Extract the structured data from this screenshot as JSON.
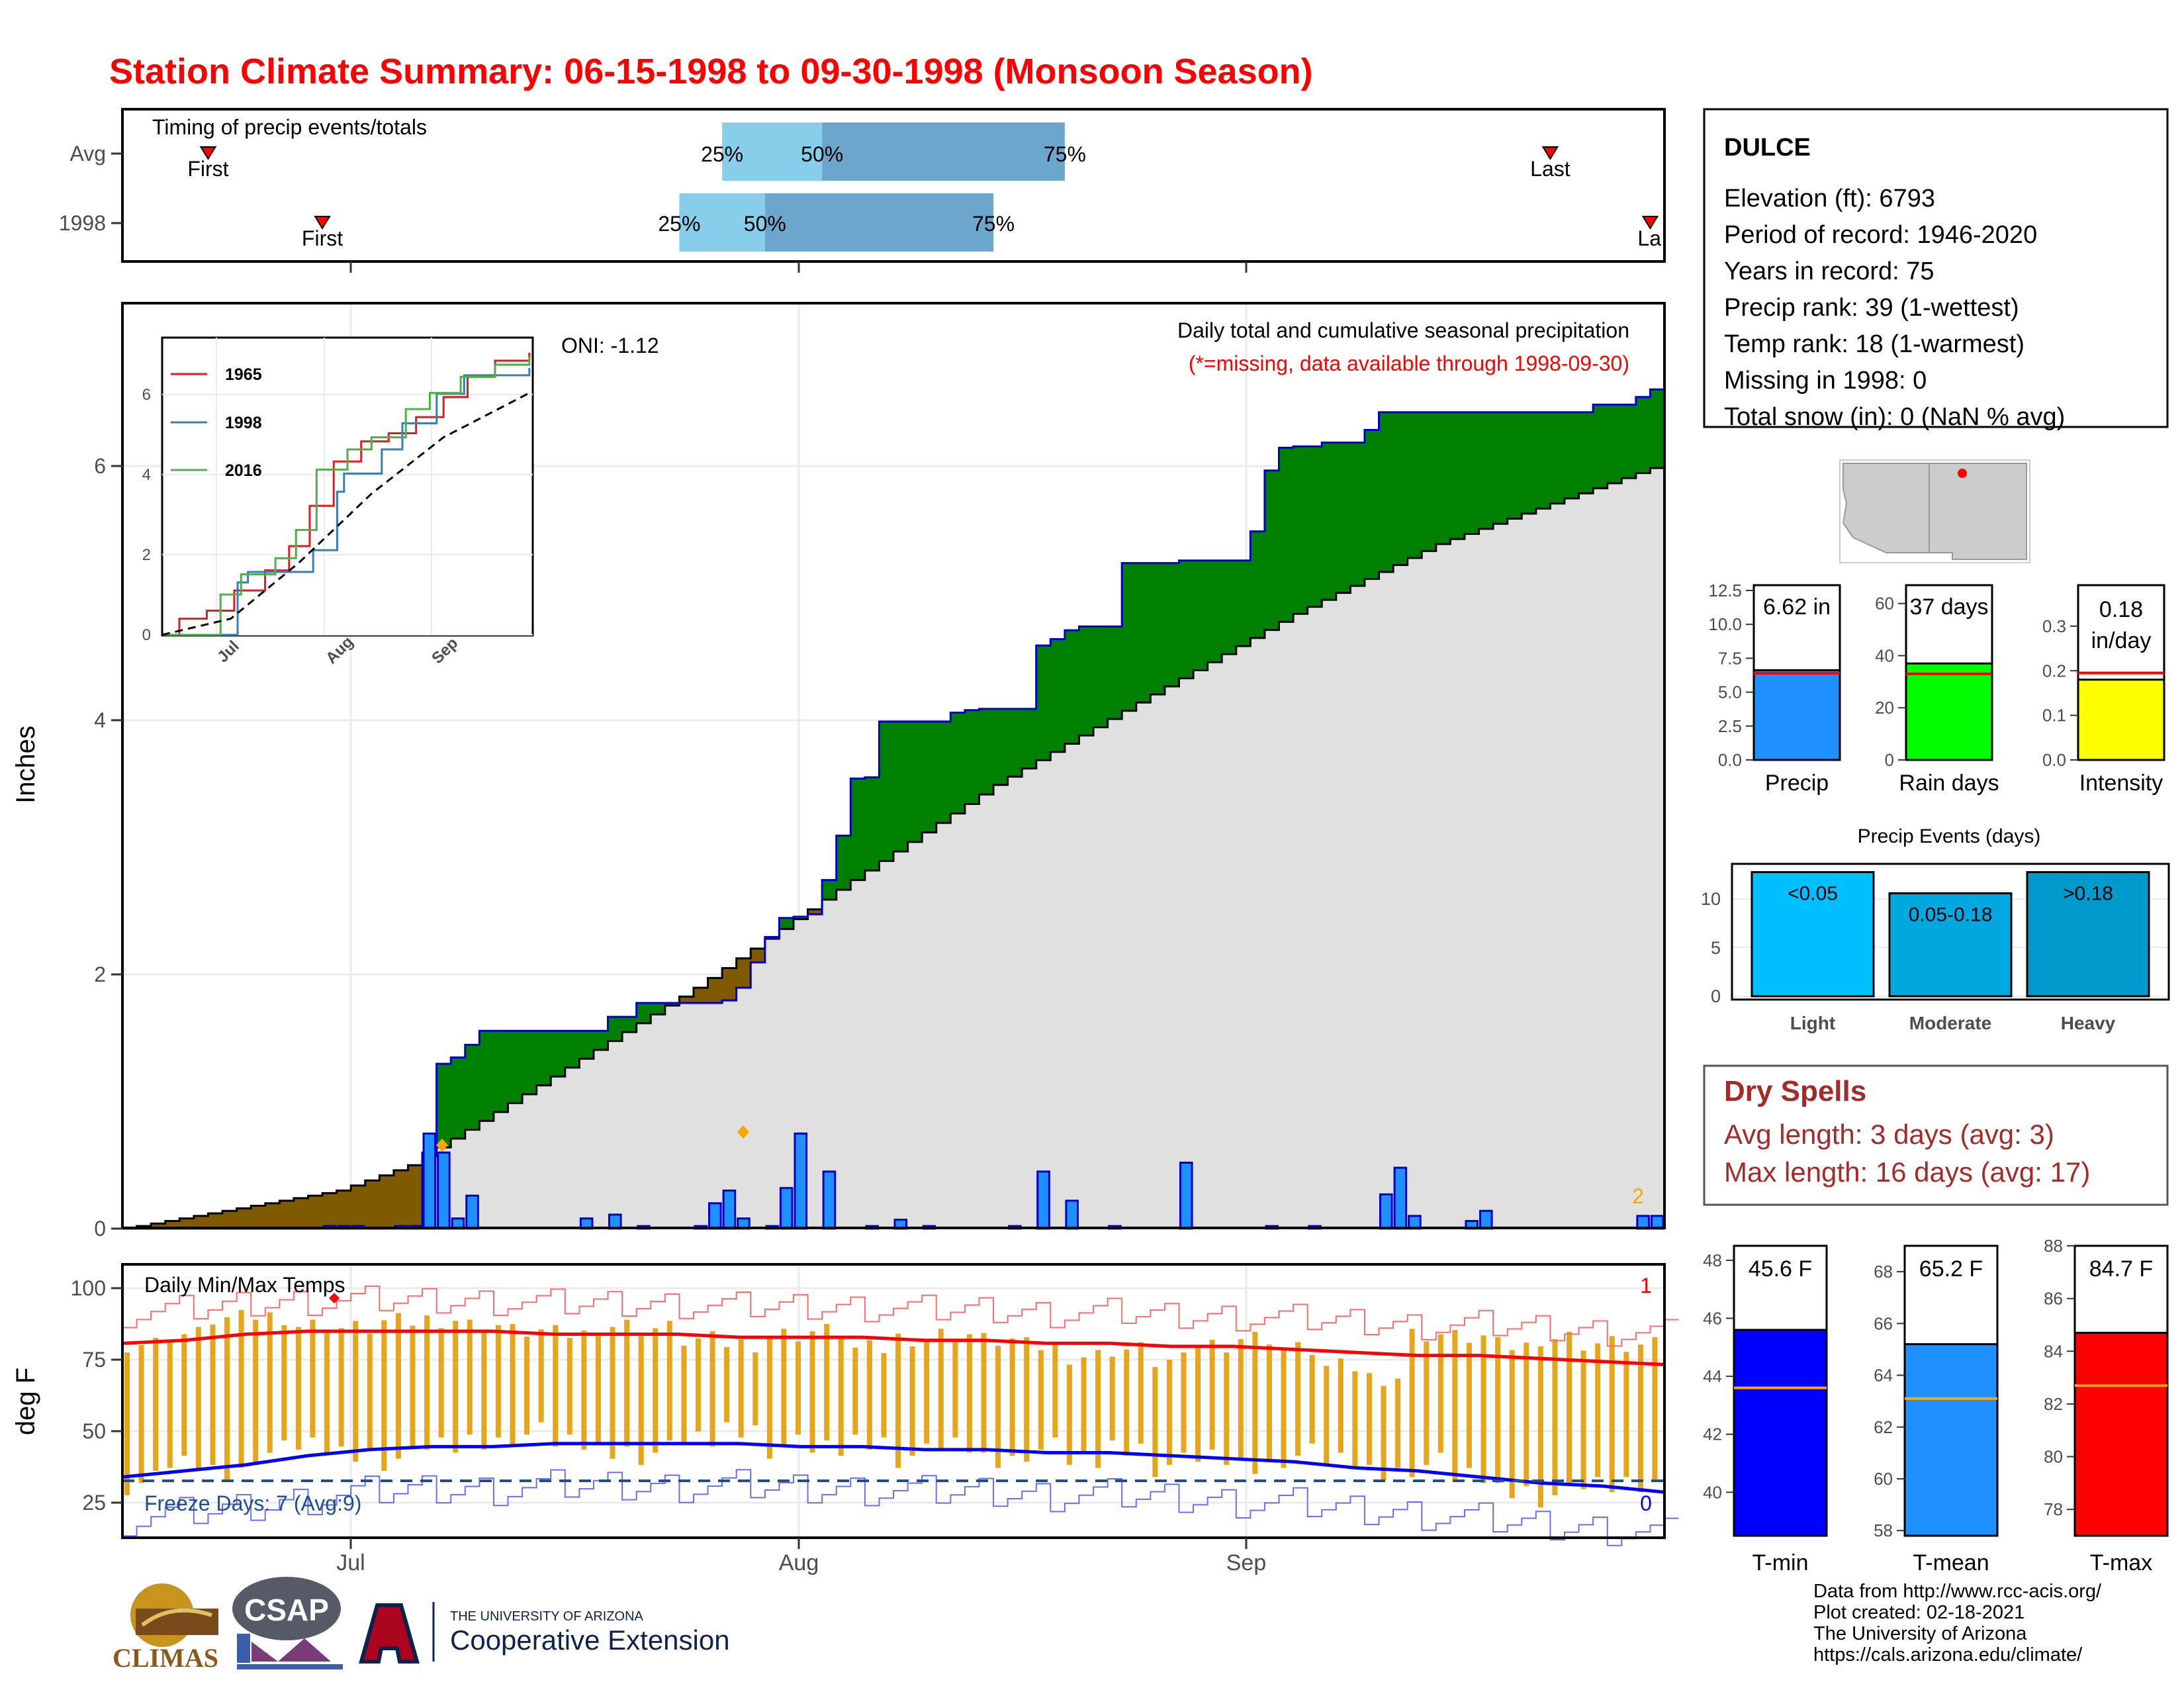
{
  "title": "Station Climate Summary: 06-15-1998 to 09-30-1998 (Monsoon Season)",
  "colors": {
    "title": "#ff0000",
    "green": "#008000",
    "brown": "#7f5a00",
    "bar_blue": "#1e90ff",
    "light_blue": "#87ceeb",
    "mid_blue": "#6ca6cd",
    "orange": "#e7a51c",
    "red": "#ff0000",
    "blue": "#0000ff",
    "dry_red": "#a52a2a",
    "yellow": "#ffff00",
    "lime": "#00ff00"
  },
  "timing": {
    "title": "Timing of precip events/totals",
    "rows": [
      {
        "label": "Avg",
        "first_label": "First",
        "last_label": "Last",
        "first": "06-21",
        "last": "09-23",
        "p25": "07-27",
        "p50": "08-03",
        "p75": "08-20"
      },
      {
        "label": "1998",
        "first_label": "First",
        "last_label": "La",
        "first": "06-29",
        "last": "09-30",
        "p25": "07-24",
        "p50": "07-30",
        "p75": "08-15"
      }
    ],
    "pct_labels": [
      "25%",
      "50%",
      "75%"
    ]
  },
  "main": {
    "ylabel": "Inches",
    "oni": "ONI: -1.12",
    "subtitle": "Daily total and cumulative seasonal precipitation",
    "missing_note": "(*=missing, data available through 1998-09-30)",
    "missing_count": "2",
    "yticks": [
      "0",
      "2",
      "4",
      "6"
    ],
    "xticks": [
      "Jul",
      "Aug",
      "Sep"
    ]
  },
  "inset": {
    "yticks": [
      "0",
      "2",
      "4",
      "6"
    ],
    "xticks": [
      "Jul",
      "Aug",
      "Sep"
    ],
    "legend": [
      "1965",
      "1998",
      "2016"
    ]
  },
  "temps": {
    "title": "Daily Min/Max Temps",
    "ylabel": "deg F",
    "freeze": "Freeze Days: 7 (Avg:9)",
    "count_hot": "1",
    "count_cold": "0",
    "yticks": [
      "25",
      "50",
      "75",
      "100"
    ],
    "xticks": [
      "Jul",
      "Aug",
      "Sep"
    ]
  },
  "station": {
    "name": "DULCE",
    "lines": [
      "Elevation (ft): 6793",
      "Period of record: 1946-2020",
      "Years in record: 75",
      "Precip rank: 39 (1-wettest)",
      "Temp rank: 18 (1-warmest)",
      "Missing in 1998: 0",
      "Total snow (in): 0 (NaN % avg)"
    ]
  },
  "summary_bars": [
    {
      "label": "Precip",
      "value_label": "6.62 in",
      "value": 6.62,
      "avg": 6.4,
      "max": 12.5,
      "ticks": [
        "0.0",
        "2.5",
        "5.0",
        "7.5",
        "10.0",
        "12.5"
      ]
    },
    {
      "label": "Rain days",
      "value_label": "37 days",
      "value": 37,
      "avg": 33,
      "max": 65,
      "ticks": [
        "0",
        "20",
        "40",
        "60"
      ]
    },
    {
      "label": "Intensity",
      "value_label": "0.18 in/day",
      "value_line1": "0.18",
      "value_line2": "in/day",
      "value": 0.18,
      "avg": 0.195,
      "max": 0.38,
      "ticks": [
        "0.0",
        "0.1",
        "0.2",
        "0.3"
      ]
    }
  ],
  "events": {
    "title": "Precip Events (days)",
    "ticks": [
      "0",
      "5",
      "10"
    ],
    "bars": [
      {
        "category": "Light",
        "label": "<0.05",
        "value": 13.5
      },
      {
        "category": "Moderate",
        "label": "0.05-0.18",
        "value": 11.2
      },
      {
        "category": "Heavy",
        "label": ">0.18",
        "value": 13.5
      }
    ]
  },
  "dry": {
    "title": "Dry Spells",
    "avg": "Avg length: 3 days (avg: 3)",
    "max": "Max length: 16 days (avg: 17)"
  },
  "temp_bars": [
    {
      "label": "T-min",
      "value_label": "45.6 F",
      "value": 45.6,
      "avg": 43.6,
      "min": 38.5,
      "max": 48.5,
      "ticks": [
        "40",
        "42",
        "44",
        "46",
        "48"
      ]
    },
    {
      "label": "T-mean",
      "value_label": "65.2 F",
      "value": 65.2,
      "avg": 63.1,
      "min": 57.8,
      "max": 69,
      "ticks": [
        "58",
        "60",
        "62",
        "64",
        "66",
        "68"
      ]
    },
    {
      "label": "T-max",
      "value_label": "84.7 F",
      "value": 84.7,
      "avg": 82.7,
      "min": 77,
      "max": 88,
      "ticks": [
        "78",
        "80",
        "82",
        "84",
        "86",
        "88"
      ]
    }
  ],
  "footer": {
    "lines": [
      "Data from http://www.rcc-acis.org/",
      "Plot created: 02-18-2021",
      "The University of Arizona",
      "https://cals.arizona.edu/climate/"
    ],
    "climas": "CLIMAS",
    "csap": "CSAP",
    "ua_line1": "THE UNIVERSITY OF ARIZONA",
    "ua_line2": "Cooperative Extension"
  },
  "chart_data": [
    {
      "type": "area",
      "title": "Daily total and cumulative seasonal precipitation",
      "ylabel": "Inches",
      "ylim": [
        0,
        7.3
      ],
      "xlim": [
        "06-15",
        "09-30"
      ],
      "cumulative_1998": [
        [
          "06-15",
          0.0
        ],
        [
          "07-05",
          0.0
        ],
        [
          "07-06",
          0.6
        ],
        [
          "07-07",
          1.3
        ],
        [
          "07-08",
          1.35
        ],
        [
          "07-09",
          1.45
        ],
        [
          "07-10",
          1.56
        ],
        [
          "07-19",
          1.67
        ],
        [
          "07-21",
          1.78
        ],
        [
          "07-27",
          1.8
        ],
        [
          "07-28",
          1.9
        ],
        [
          "07-29",
          2.1
        ],
        [
          "07-30",
          2.3
        ],
        [
          "07-31",
          2.45
        ],
        [
          "08-01",
          2.46
        ],
        [
          "08-02",
          2.48
        ],
        [
          "08-03",
          2.75
        ],
        [
          "08-04",
          3.1
        ],
        [
          "08-05",
          3.55
        ],
        [
          "08-06",
          3.56
        ],
        [
          "08-07",
          4.0
        ],
        [
          "08-12",
          4.07
        ],
        [
          "08-13",
          4.09
        ],
        [
          "08-14",
          4.1
        ],
        [
          "08-18",
          4.6
        ],
        [
          "08-19",
          4.65
        ],
        [
          "08-20",
          4.72
        ],
        [
          "08-21",
          4.75
        ],
        [
          "08-24",
          5.25
        ],
        [
          "08-28",
          5.27
        ],
        [
          "09-02",
          5.5
        ],
        [
          "09-03",
          5.98
        ],
        [
          "09-04",
          6.16
        ],
        [
          "09-05",
          6.17
        ],
        [
          "09-07",
          6.2
        ],
        [
          "09-10",
          6.3
        ],
        [
          "09-11",
          6.44
        ],
        [
          "09-26",
          6.5
        ],
        [
          "09-29",
          6.56
        ],
        [
          "09-30",
          6.62
        ]
      ],
      "average_cumulative": [
        [
          "06-15",
          0.0
        ],
        [
          "06-30",
          0.3
        ],
        [
          "07-05",
          0.5
        ],
        [
          "07-15",
          1.2
        ],
        [
          "07-25",
          1.9
        ],
        [
          "08-05",
          2.75
        ],
        [
          "08-15",
          3.5
        ],
        [
          "08-25",
          4.15
        ],
        [
          "09-05",
          4.85
        ],
        [
          "09-15",
          5.4
        ],
        [
          "09-25",
          5.8
        ],
        [
          "09-30",
          6.0
        ]
      ],
      "daily_precip": [
        [
          "06-29",
          0.02
        ],
        [
          "06-30",
          0.02
        ],
        [
          "07-01",
          0.02
        ],
        [
          "07-04",
          0.02
        ],
        [
          "07-05",
          0.02
        ],
        [
          "07-06",
          0.75
        ],
        [
          "07-07",
          0.6
        ],
        [
          "07-08",
          0.08
        ],
        [
          "07-09",
          0.26
        ],
        [
          "07-17",
          0.08
        ],
        [
          "07-19",
          0.11
        ],
        [
          "07-21",
          0.02
        ],
        [
          "07-25",
          0.02
        ],
        [
          "07-26",
          0.2
        ],
        [
          "07-27",
          0.3
        ],
        [
          "07-28",
          0.08
        ],
        [
          "07-30",
          0.02
        ],
        [
          "07-31",
          0.32
        ],
        [
          "08-01",
          0.75
        ],
        [
          "08-03",
          0.45
        ],
        [
          "08-06",
          0.02
        ],
        [
          "08-08",
          0.07
        ],
        [
          "08-10",
          0.02
        ],
        [
          "08-16",
          0.02
        ],
        [
          "08-18",
          0.45
        ],
        [
          "08-20",
          0.22
        ],
        [
          "08-23",
          0.02
        ],
        [
          "08-28",
          0.52
        ],
        [
          "09-03",
          0.02
        ],
        [
          "09-06",
          0.02
        ],
        [
          "09-11",
          0.27
        ],
        [
          "09-12",
          0.48
        ],
        [
          "09-13",
          0.1
        ],
        [
          "09-17",
          0.06
        ],
        [
          "09-18",
          0.14
        ],
        [
          "09-29",
          0.1
        ],
        [
          "09-30",
          0.1
        ]
      ]
    },
    {
      "type": "line",
      "title": "Cumulative precipitation comparison",
      "ylim": [
        0,
        7
      ],
      "series": [
        {
          "name": "1965",
          "values": [
            [
              "06-15",
              0.0
            ],
            [
              "06-20",
              0.4
            ],
            [
              "06-28",
              0.6
            ],
            [
              "07-06",
              1.1
            ],
            [
              "07-15",
              1.6
            ],
            [
              "07-22",
              2.2
            ],
            [
              "07-28",
              3.2
            ],
            [
              "08-04",
              4.3
            ],
            [
              "08-12",
              4.8
            ],
            [
              "08-20",
              5.0
            ],
            [
              "08-28",
              5.4
            ],
            [
              "09-05",
              5.9
            ],
            [
              "09-12",
              6.4
            ],
            [
              "09-20",
              6.8
            ],
            [
              "09-30",
              7.0
            ]
          ]
        },
        {
          "name": "1998",
          "values": [
            [
              "06-15",
              0.0
            ],
            [
              "07-05",
              0.0
            ],
            [
              "07-07",
              1.3
            ],
            [
              "07-10",
              1.56
            ],
            [
              "07-29",
              2.1
            ],
            [
              "08-05",
              3.55
            ],
            [
              "08-07",
              4.0
            ],
            [
              "08-18",
              4.6
            ],
            [
              "08-24",
              5.25
            ],
            [
              "09-03",
              5.98
            ],
            [
              "09-11",
              6.44
            ],
            [
              "09-30",
              6.62
            ]
          ]
        },
        {
          "name": "2016",
          "values": [
            [
              "06-15",
              0.0
            ],
            [
              "06-25",
              0.0
            ],
            [
              "07-02",
              1.0
            ],
            [
              "07-08",
              1.5
            ],
            [
              "07-18",
              1.9
            ],
            [
              "07-24",
              2.6
            ],
            [
              "07-30",
              4.1
            ],
            [
              "08-08",
              4.6
            ],
            [
              "08-15",
              4.9
            ],
            [
              "08-25",
              5.6
            ],
            [
              "09-01",
              6.0
            ],
            [
              "09-10",
              6.4
            ],
            [
              "09-20",
              6.7
            ],
            [
              "09-30",
              6.9
            ]
          ]
        }
      ],
      "average": [
        [
          "06-15",
          0.0
        ],
        [
          "07-05",
          0.4
        ],
        [
          "07-25",
          1.8
        ],
        [
          "08-15",
          3.5
        ],
        [
          "09-05",
          4.9
        ],
        [
          "09-30",
          6.0
        ]
      ]
    },
    {
      "type": "bar",
      "title": "Daily Min/Max Temps",
      "ylabel": "deg F",
      "ylim": [
        18,
        108
      ],
      "series": [
        {
          "name": "Daily max",
          "values": [
            82,
            85,
            90,
            91,
            88,
            87,
            89,
            90,
            88,
            86,
            85,
            88,
            87,
            83,
            82,
            85,
            86,
            80,
            84,
            85,
            83,
            81,
            78,
            80,
            76,
            82,
            84,
            80,
            74,
            71,
            85,
            84,
            81,
            84,
            82,
            81
          ]
        },
        {
          "name": "Daily min",
          "values": [
            36,
            42,
            40,
            46,
            48,
            46,
            44,
            48,
            50,
            52,
            49,
            47,
            46,
            50,
            54,
            48,
            47,
            50,
            45,
            48,
            44,
            47,
            43,
            48,
            42,
            44,
            42,
            45,
            43,
            40,
            42,
            38,
            34,
            32,
            35,
            36
          ]
        },
        {
          "name": "Average max",
          "values": [
            82,
            83,
            85,
            86,
            86,
            86,
            86,
            85,
            85,
            85,
            84,
            84,
            84,
            83,
            83,
            82,
            82,
            81,
            81,
            80,
            79,
            78,
            78,
            77,
            76,
            75
          ]
        },
        {
          "name": "Average min",
          "values": [
            38,
            40,
            42,
            45,
            47,
            48,
            48,
            49,
            49,
            49,
            49,
            48,
            48,
            47,
            47,
            46,
            46,
            45,
            44,
            43,
            41,
            40,
            38,
            36,
            35,
            33
          ]
        }
      ]
    }
  ]
}
